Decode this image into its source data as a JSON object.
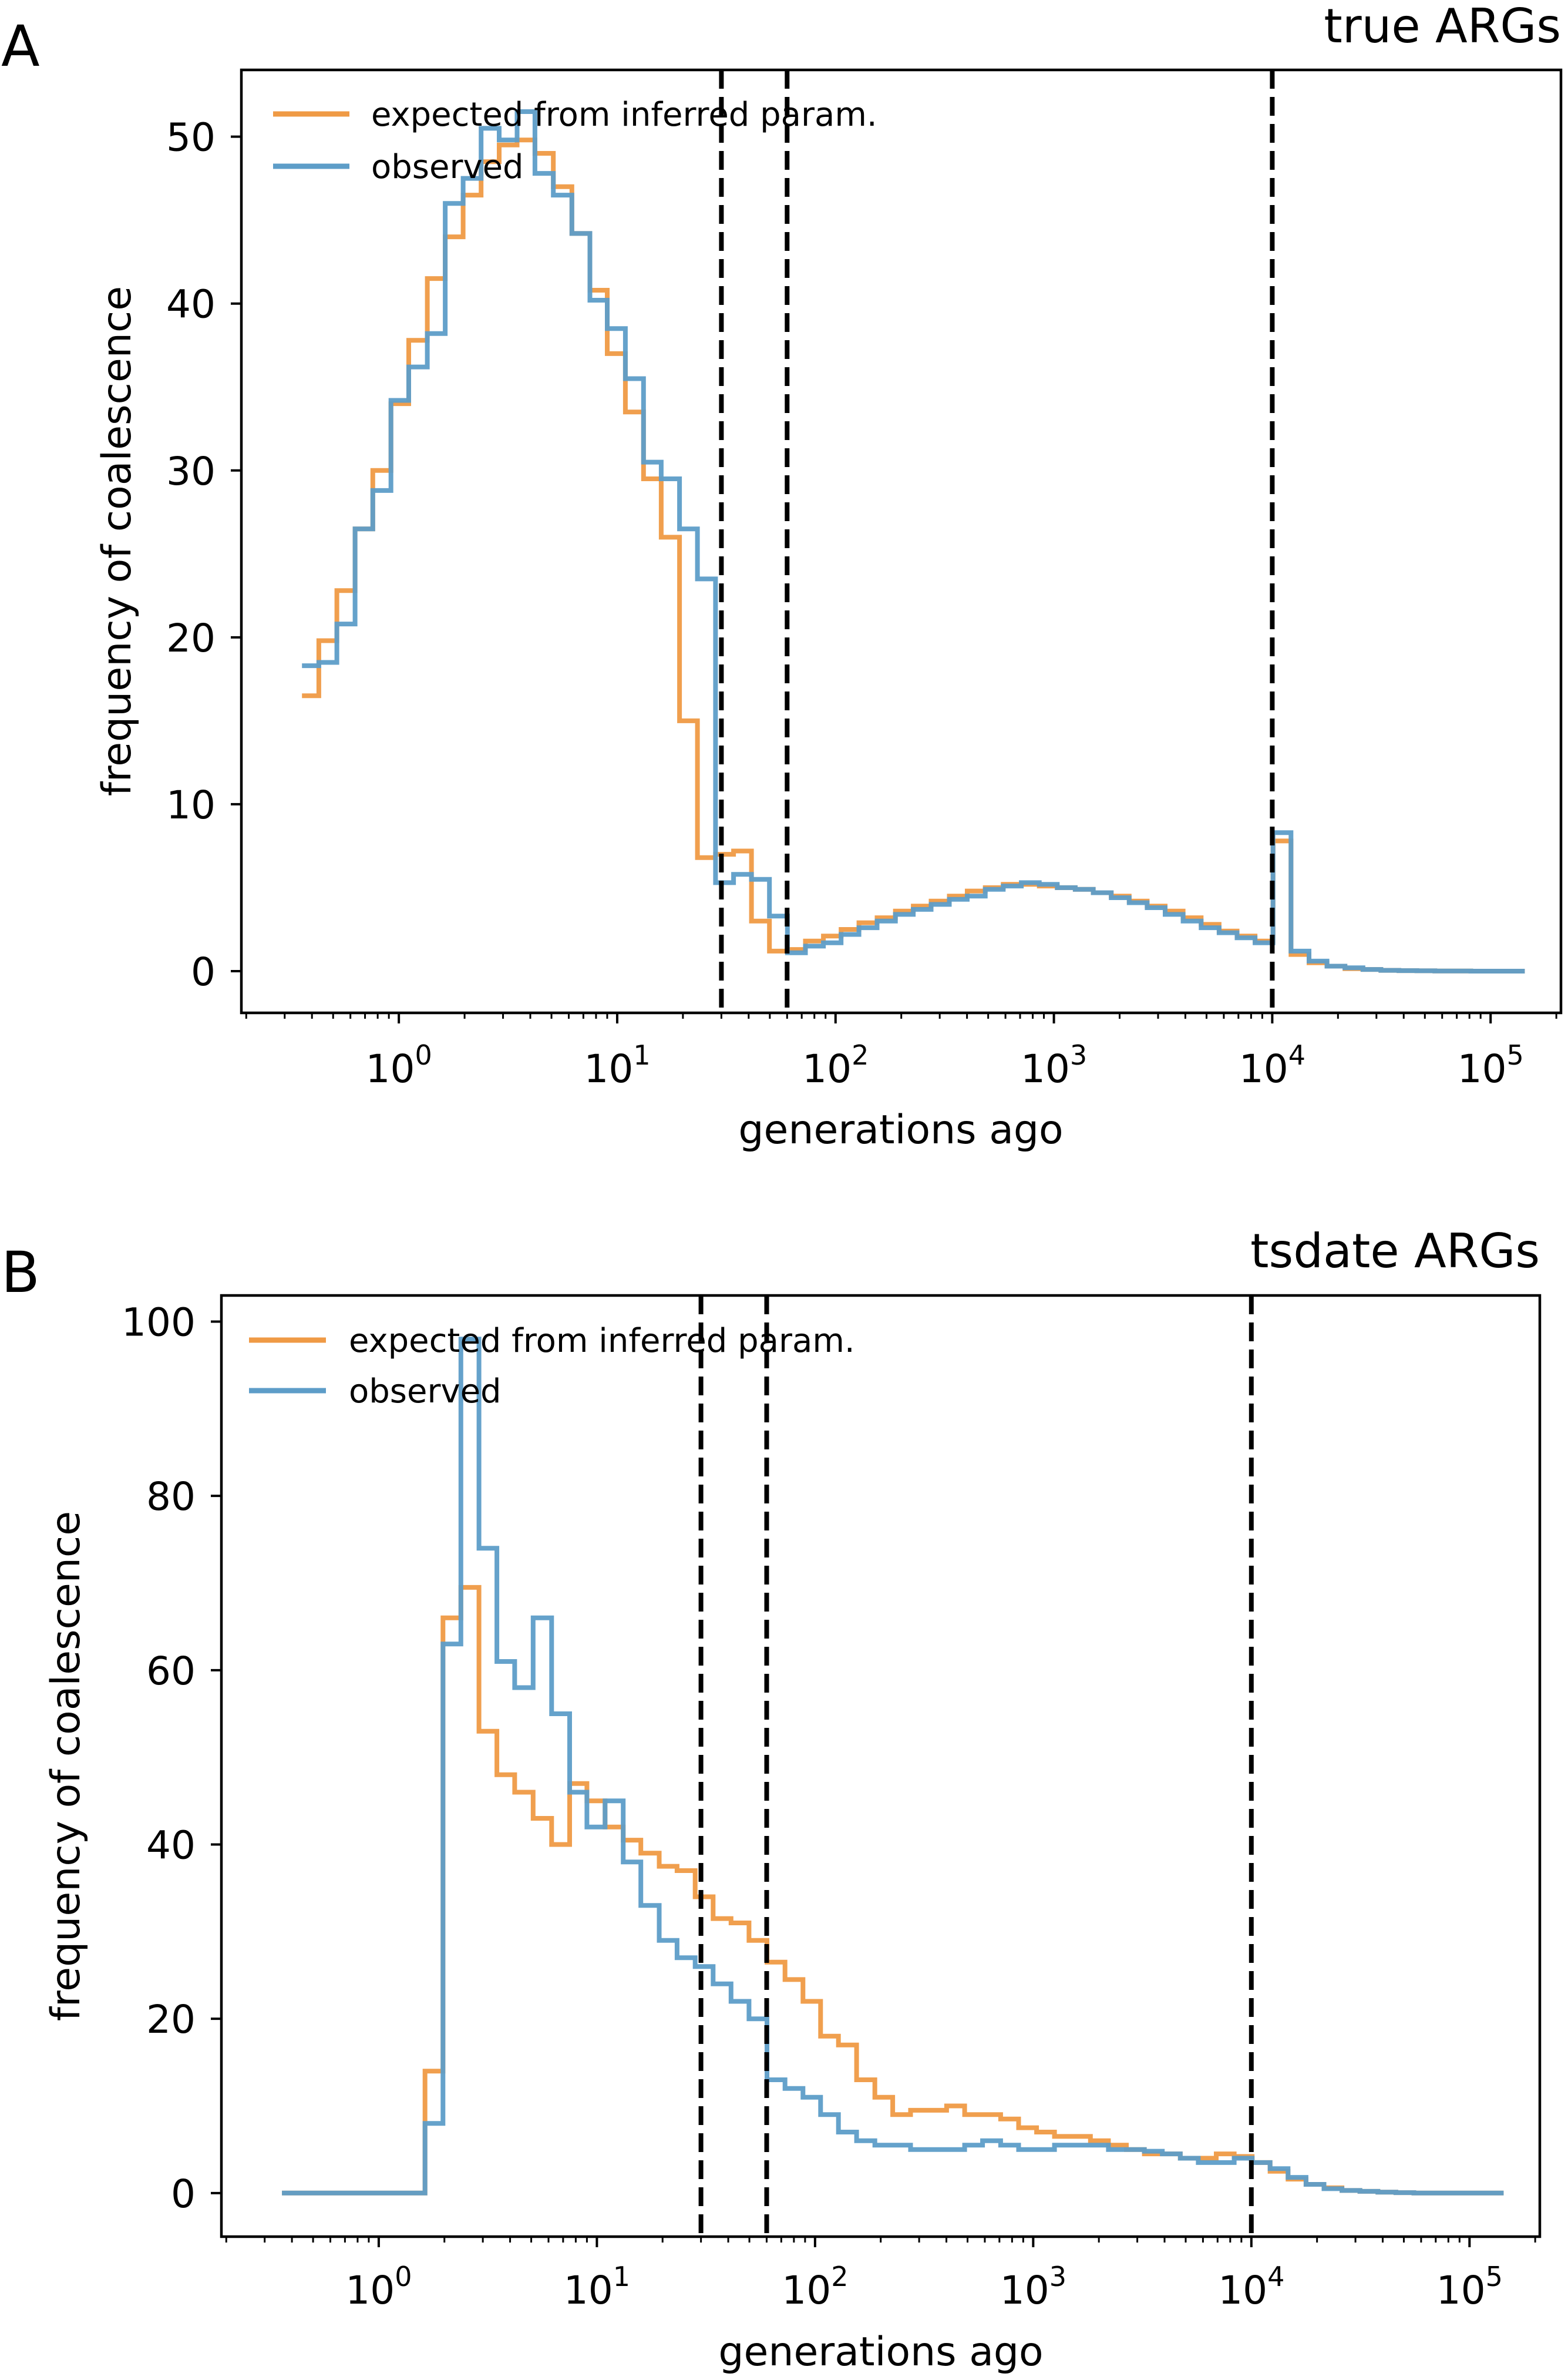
{
  "figure": {
    "legend_labels": {
      "expected": "expected from inferred param.",
      "observed": "observed"
    },
    "colors": {
      "expected": "#ef9a45",
      "observed": "#5d9dc8",
      "vline": "#000000"
    }
  },
  "chart_data": [
    {
      "panel_letter": "A",
      "type": "line",
      "style": "step",
      "title": "true ARGs",
      "xlabel": "generations ago",
      "ylabel": "frequency of coalescence",
      "xscale": "log",
      "xlim": [
        0.19,
        210000
      ],
      "ylim": [
        -2.5,
        54
      ],
      "yticks": [
        0,
        10,
        20,
        30,
        40,
        50
      ],
      "xticks": [
        {
          "base": "10",
          "exp": "0",
          "value": 1
        },
        {
          "base": "10",
          "exp": "1",
          "value": 10
        },
        {
          "base": "10",
          "exp": "2",
          "value": 100
        },
        {
          "base": "10",
          "exp": "3",
          "value": 1000
        },
        {
          "base": "10",
          "exp": "4",
          "value": 10000
        },
        {
          "base": "10",
          "exp": "5",
          "value": 100000
        }
      ],
      "vlines": [
        30,
        60,
        10000
      ],
      "legend_position": "top-left",
      "series": [
        {
          "name": "expected from inferred param.",
          "key": "expected",
          "x": [
            0.36,
            0.43,
            0.52,
            0.63,
            0.76,
            0.92,
            1.11,
            1.35,
            1.63,
            1.97,
            2.38,
            2.88,
            3.48,
            4.2,
            5.1,
            6.2,
            7.5,
            9.0,
            10.9,
            13.2,
            15.9,
            19.3,
            23.3,
            28.2,
            34.1,
            41.2,
            49.8,
            60.2,
            72.8,
            88.0,
            106,
            128,
            155,
            188,
            227,
            274,
            332,
            401,
            485,
            586,
            709,
            857,
            1036,
            1252,
            1514,
            1830,
            2212,
            2674,
            3232,
            3907,
            4723,
            5709,
            6900,
            8341,
            10083,
            12188,
            14733,
            17810,
            21528,
            26023,
            31456,
            38024,
            45963,
            55560,
            67160,
            81183,
            98133,
            118623,
            143390
          ],
          "y": [
            16.5,
            19.8,
            22.8,
            26.5,
            30.0,
            34.0,
            37.8,
            41.5,
            44.0,
            46.5,
            48.5,
            49.5,
            49.8,
            49.0,
            47.0,
            44.2,
            40.8,
            37.0,
            33.5,
            29.5,
            26.0,
            15.0,
            6.8,
            7.0,
            7.2,
            3.0,
            1.2,
            1.3,
            1.8,
            2.1,
            2.5,
            2.9,
            3.2,
            3.6,
            3.9,
            4.2,
            4.5,
            4.8,
            5.0,
            5.2,
            5.2,
            5.1,
            5.0,
            4.9,
            4.7,
            4.5,
            4.2,
            3.9,
            3.6,
            3.2,
            2.8,
            2.4,
            2.1,
            1.8,
            7.8,
            1.0,
            0.5,
            0.3,
            0.15,
            0.1,
            0.05,
            0.03,
            0.02,
            0.01,
            0.01,
            0.0,
            0.0,
            0.0,
            0.0
          ]
        },
        {
          "name": "observed",
          "key": "observed",
          "x": [
            0.36,
            0.43,
            0.52,
            0.63,
            0.76,
            0.92,
            1.11,
            1.35,
            1.63,
            1.97,
            2.38,
            2.88,
            3.48,
            4.2,
            5.1,
            6.2,
            7.5,
            9.0,
            10.9,
            13.2,
            15.9,
            19.3,
            23.3,
            28.2,
            34.1,
            41.2,
            49.8,
            60.2,
            72.8,
            88.0,
            106,
            128,
            155,
            188,
            227,
            274,
            332,
            401,
            485,
            586,
            709,
            857,
            1036,
            1252,
            1514,
            1830,
            2212,
            2674,
            3232,
            3907,
            4723,
            5709,
            6900,
            8341,
            10083,
            12188,
            14733,
            17810,
            21528,
            26023,
            31456,
            38024,
            45963,
            55560,
            67160,
            81183,
            98133,
            118623,
            143390
          ],
          "y": [
            18.3,
            18.5,
            20.8,
            26.5,
            28.8,
            34.2,
            36.2,
            38.2,
            46.0,
            47.5,
            50.5,
            49.8,
            51.5,
            47.8,
            46.5,
            44.2,
            40.2,
            38.5,
            35.5,
            30.5,
            29.5,
            26.5,
            23.5,
            5.3,
            5.8,
            5.5,
            3.3,
            1.1,
            1.5,
            1.7,
            2.2,
            2.6,
            3.0,
            3.4,
            3.7,
            4.0,
            4.3,
            4.5,
            4.9,
            5.1,
            5.3,
            5.2,
            5.0,
            4.9,
            4.7,
            4.4,
            4.1,
            3.8,
            3.4,
            3.0,
            2.6,
            2.3,
            2.0,
            1.7,
            8.3,
            1.2,
            0.6,
            0.3,
            0.2,
            0.1,
            0.05,
            0.03,
            0.02,
            0.01,
            0.01,
            0.0,
            0.0,
            0.0,
            0.0
          ]
        }
      ]
    },
    {
      "panel_letter": "B",
      "type": "line",
      "style": "step",
      "title": "tsdate ARGs",
      "xlabel": "generations ago",
      "ylabel": "frequency of coalescence",
      "xscale": "log",
      "xlim": [
        0.19,
        210000
      ],
      "ylim": [
        -5,
        103
      ],
      "yticks": [
        0,
        20,
        40,
        60,
        80,
        100
      ],
      "xticks": [
        {
          "base": "10",
          "exp": "0",
          "value": 1
        },
        {
          "base": "10",
          "exp": "1",
          "value": 10
        },
        {
          "base": "10",
          "exp": "2",
          "value": 100
        },
        {
          "base": "10",
          "exp": "3",
          "value": 1000
        },
        {
          "base": "10",
          "exp": "4",
          "value": 10000
        },
        {
          "base": "10",
          "exp": "5",
          "value": 100000
        }
      ],
      "vlines": [
        30,
        60,
        10000
      ],
      "legend_position": "top-left",
      "series": [
        {
          "name": "expected from inferred param.",
          "key": "expected",
          "x": [
            0.36,
            0.43,
            0.52,
            0.63,
            0.76,
            0.92,
            1.11,
            1.35,
            1.63,
            1.97,
            2.38,
            2.88,
            3.48,
            4.2,
            5.1,
            6.2,
            7.5,
            9.0,
            10.9,
            13.2,
            15.9,
            19.3,
            23.3,
            28.2,
            34.1,
            41.2,
            49.8,
            60.2,
            72.8,
            88.0,
            106,
            128,
            155,
            188,
            227,
            274,
            332,
            401,
            485,
            586,
            709,
            857,
            1036,
            1252,
            1514,
            1830,
            2212,
            2674,
            3232,
            3907,
            4723,
            5709,
            6900,
            8341,
            10083,
            12188,
            14733,
            17810,
            21528,
            26023,
            31456,
            38024,
            45963,
            55560,
            67160,
            81183,
            98133,
            118623,
            143390
          ],
          "y": [
            0,
            0,
            0,
            0,
            0,
            0,
            0,
            0,
            14,
            66,
            69.5,
            53,
            48,
            46,
            43,
            40,
            47,
            45,
            42,
            40.5,
            39,
            37.5,
            37,
            34,
            31.5,
            31,
            29,
            26.5,
            24.5,
            22,
            18,
            17,
            13,
            11,
            9,
            9.5,
            9.5,
            10,
            9,
            9,
            8.5,
            7.5,
            7,
            6.5,
            6.5,
            6,
            5.5,
            5,
            4.5,
            4.5,
            4,
            4,
            4.5,
            4.2,
            3.5,
            2.5,
            1.6,
            1.0,
            0.6,
            0.3,
            0.2,
            0.1,
            0.05,
            0,
            0,
            0,
            0,
            0,
            0
          ]
        },
        {
          "name": "observed",
          "key": "observed",
          "x": [
            0.36,
            0.43,
            0.52,
            0.63,
            0.76,
            0.92,
            1.11,
            1.35,
            1.63,
            1.97,
            2.38,
            2.88,
            3.48,
            4.2,
            5.1,
            6.2,
            7.5,
            9.0,
            10.9,
            13.2,
            15.9,
            19.3,
            23.3,
            28.2,
            34.1,
            41.2,
            49.8,
            60.2,
            72.8,
            88.0,
            106,
            128,
            155,
            188,
            227,
            274,
            332,
            401,
            485,
            586,
            709,
            857,
            1036,
            1252,
            1514,
            1830,
            2212,
            2674,
            3232,
            3907,
            4723,
            5709,
            6900,
            8341,
            10083,
            12188,
            14733,
            17810,
            21528,
            26023,
            31456,
            38024,
            45963,
            55560,
            67160,
            81183,
            98133,
            118623,
            143390
          ],
          "y": [
            0,
            0,
            0,
            0,
            0,
            0,
            0,
            0,
            8,
            63,
            98,
            74,
            61,
            58,
            66,
            55,
            46,
            42,
            45,
            38,
            33,
            29,
            27,
            26,
            24,
            22,
            20,
            13,
            12,
            11,
            9,
            7,
            6,
            5.5,
            5.5,
            5,
            5,
            5,
            5.5,
            6,
            5.5,
            5,
            5,
            5.5,
            5.5,
            5.5,
            5,
            5,
            4.8,
            4.5,
            4,
            3.5,
            3.5,
            4,
            3.5,
            2.8,
            1.8,
            1.0,
            0.5,
            0.3,
            0.2,
            0.1,
            0.05,
            0,
            0,
            0,
            0,
            0,
            0
          ]
        }
      ]
    }
  ]
}
